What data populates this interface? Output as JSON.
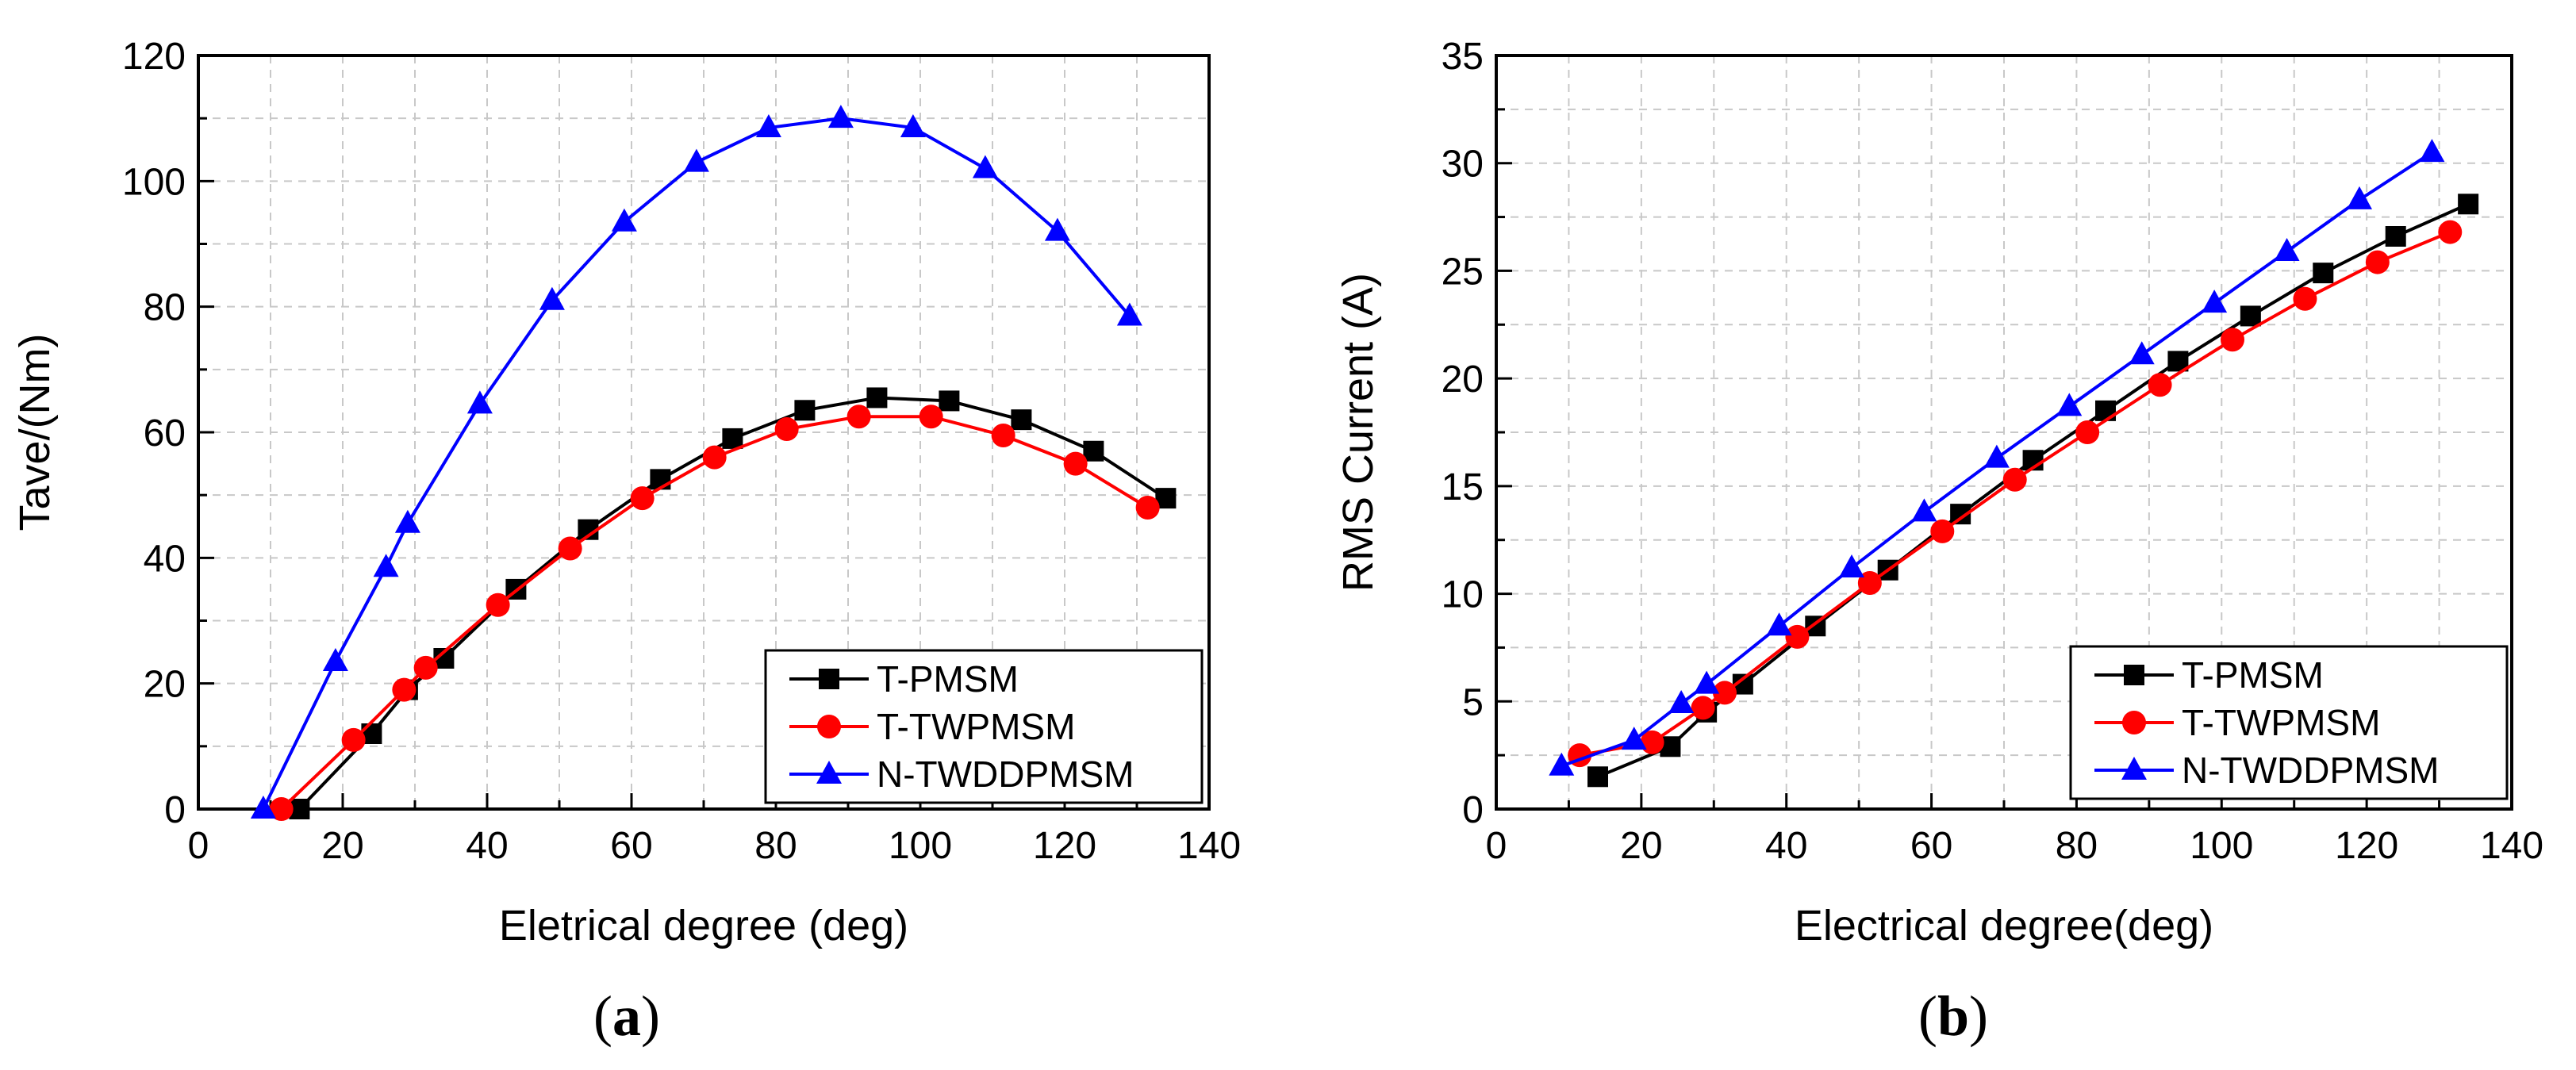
{
  "chart_data": [
    {
      "type": "line",
      "panel_label": "a",
      "title": "",
      "xlabel": "Eletrical degree (deg)",
      "ylabel": "Tave/(Nm)",
      "xlim": [
        0,
        140
      ],
      "ylim": [
        0,
        120
      ],
      "xticks": [
        0,
        20,
        40,
        60,
        80,
        100,
        120,
        140
      ],
      "yticks": [
        0,
        20,
        40,
        60,
        80,
        100,
        120
      ],
      "grid": true,
      "legend_position": "bottom-right",
      "series": [
        {
          "name": "T-PMSM",
          "color": "#000000",
          "marker": "square",
          "x": [
            14,
            24,
            29,
            34,
            44,
            54,
            64,
            74,
            84,
            94,
            104,
            114,
            124,
            134
          ],
          "y": [
            0,
            12,
            19,
            24,
            35,
            44.5,
            52.5,
            59,
            63.5,
            65.5,
            65,
            62,
            57,
            49.5
          ]
        },
        {
          "name": "T-TWPMSM",
          "color": "#ff0000",
          "marker": "circle",
          "x": [
            11.5,
            21.5,
            28.5,
            31.5,
            41.5,
            51.5,
            61.5,
            71.5,
            81.5,
            91.5,
            101.5,
            111.5,
            121.5,
            131.5
          ],
          "y": [
            0,
            11,
            19,
            22.5,
            32.5,
            41.5,
            49.5,
            56,
            60.5,
            62.5,
            62.5,
            59.5,
            55,
            48
          ]
        },
        {
          "name": "N-TWDDPMSM",
          "color": "#0000ff",
          "marker": "triangle",
          "x": [
            9,
            19,
            26,
            29,
            39,
            49,
            59,
            69,
            79,
            89,
            99,
            109,
            119,
            129
          ],
          "y": [
            0,
            23.5,
            38.5,
            45.5,
            64.5,
            81,
            93.5,
            103,
            108.5,
            110,
            108.5,
            102,
            92,
            78.5
          ]
        }
      ]
    },
    {
      "type": "line",
      "panel_label": "b",
      "title": "",
      "xlabel": "Electrical degree(deg)",
      "ylabel": "RMS Current (A)",
      "xlim": [
        0,
        140
      ],
      "ylim": [
        0,
        35
      ],
      "xticks": [
        0,
        20,
        40,
        60,
        80,
        100,
        120,
        140
      ],
      "yticks": [
        0,
        5,
        10,
        15,
        20,
        25,
        30,
        35
      ],
      "grid": true,
      "legend_position": "bottom-right",
      "series": [
        {
          "name": "T-PMSM",
          "color": "#000000",
          "marker": "square",
          "x": [
            14,
            24,
            29,
            34,
            44,
            54,
            64,
            74,
            84,
            94,
            104,
            114,
            124,
            134
          ],
          "y": [
            1.5,
            2.9,
            4.5,
            5.8,
            8.5,
            11.1,
            13.7,
            16.2,
            18.5,
            20.8,
            22.9,
            24.9,
            26.6,
            28.1
          ]
        },
        {
          "name": "T-TWPMSM",
          "color": "#ff0000",
          "marker": "circle",
          "x": [
            11.5,
            21.5,
            28.5,
            31.5,
            41.5,
            51.5,
            61.5,
            71.5,
            81.5,
            91.5,
            101.5,
            111.5,
            121.5,
            131.5
          ],
          "y": [
            2.5,
            3.1,
            4.7,
            5.4,
            8.0,
            10.5,
            12.9,
            15.3,
            17.5,
            19.7,
            21.8,
            23.7,
            25.4,
            26.8
          ]
        },
        {
          "name": "N-TWDDPMSM",
          "color": "#0000ff",
          "marker": "triangle",
          "x": [
            9,
            19,
            25.5,
            29,
            39,
            49,
            59,
            69,
            79,
            89,
            99,
            109,
            119,
            129
          ],
          "y": [
            2.0,
            3.2,
            4.9,
            5.8,
            8.5,
            11.2,
            13.8,
            16.3,
            18.7,
            21.1,
            23.5,
            25.9,
            28.3,
            30.5
          ]
        }
      ]
    }
  ],
  "captions": {
    "a": {
      "open": "(",
      "letter": "a",
      "close": ")"
    },
    "b": {
      "open": "(",
      "letter": "b",
      "close": ")"
    }
  }
}
